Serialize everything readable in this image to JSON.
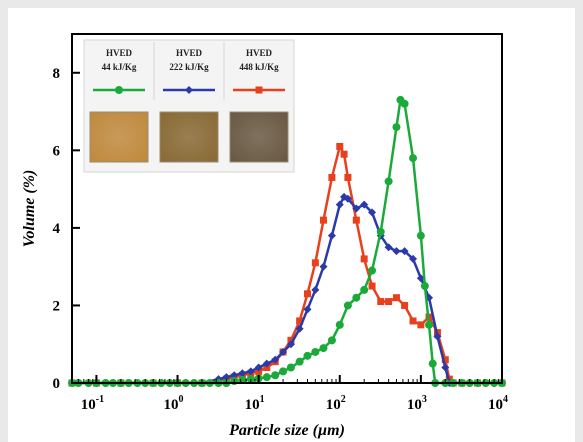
{
  "chart_data": {
    "type": "line",
    "xlabel": "Particle size (µm)",
    "ylabel": "Volume (%)",
    "x_scale": "log",
    "xlim": [
      0.05,
      10000
    ],
    "ylim": [
      0,
      9
    ],
    "x_ticks": [
      {
        "value": 0.1,
        "base": "10",
        "exp": "-1"
      },
      {
        "value": 1,
        "base": "10",
        "exp": "0"
      },
      {
        "value": 10,
        "base": "10",
        "exp": "1"
      },
      {
        "value": 100,
        "base": "10",
        "exp": "2"
      },
      {
        "value": 1000,
        "base": "10",
        "exp": "3"
      },
      {
        "value": 10000,
        "base": "10",
        "exp": "4"
      }
    ],
    "y_ticks": [
      0,
      2,
      4,
      6,
      8
    ],
    "grid": false,
    "legend_position": "top-left",
    "series": [
      {
        "name_line1": "HVED",
        "name_line2": "44 kJ/Kg",
        "color": "#1aaa3a",
        "marker": "circle",
        "points": [
          [
            0.05,
            0
          ],
          [
            0.06,
            0
          ],
          [
            0.08,
            0
          ],
          [
            0.1,
            0
          ],
          [
            0.13,
            0
          ],
          [
            0.16,
            0
          ],
          [
            0.2,
            0
          ],
          [
            0.25,
            0
          ],
          [
            0.32,
            0
          ],
          [
            0.4,
            0
          ],
          [
            0.5,
            0
          ],
          [
            0.63,
            0
          ],
          [
            0.8,
            0
          ],
          [
            1,
            0
          ],
          [
            1.26,
            0
          ],
          [
            1.6,
            0
          ],
          [
            2,
            0
          ],
          [
            2.5,
            0
          ],
          [
            3.2,
            0
          ],
          [
            4,
            0
          ],
          [
            5,
            0.05
          ],
          [
            6.3,
            0.08
          ],
          [
            8,
            0.1
          ],
          [
            10,
            0.12
          ],
          [
            12.6,
            0.15
          ],
          [
            16,
            0.2
          ],
          [
            20,
            0.3
          ],
          [
            25,
            0.4
          ],
          [
            32,
            0.55
          ],
          [
            40,
            0.7
          ],
          [
            50,
            0.8
          ],
          [
            63,
            0.9
          ],
          [
            80,
            1.1
          ],
          [
            100,
            1.5
          ],
          [
            126,
            2.0
          ],
          [
            160,
            2.2
          ],
          [
            200,
            2.4
          ],
          [
            250,
            2.9
          ],
          [
            320,
            3.9
          ],
          [
            400,
            5.2
          ],
          [
            500,
            6.6
          ],
          [
            560,
            7.3
          ],
          [
            630,
            7.2
          ],
          [
            800,
            5.8
          ],
          [
            1000,
            3.8
          ],
          [
            1120,
            2.5
          ],
          [
            1260,
            1.5
          ],
          [
            1400,
            0.5
          ],
          [
            1500,
            0
          ],
          [
            2000,
            0
          ],
          [
            2500,
            0
          ],
          [
            3200,
            0
          ],
          [
            4000,
            0
          ],
          [
            5000,
            0
          ],
          [
            6300,
            0
          ],
          [
            8000,
            0
          ],
          [
            10000,
            0
          ]
        ]
      },
      {
        "name_line1": "HVED",
        "name_line2": "222 kJ/Kg",
        "color": "#2a3aa8",
        "marker": "diamond",
        "points": [
          [
            0.05,
            0
          ],
          [
            0.1,
            0
          ],
          [
            0.2,
            0
          ],
          [
            0.5,
            0
          ],
          [
            1,
            0
          ],
          [
            2,
            0
          ],
          [
            3.2,
            0.1
          ],
          [
            4,
            0.15
          ],
          [
            5,
            0.2
          ],
          [
            6.3,
            0.25
          ],
          [
            8,
            0.3
          ],
          [
            10,
            0.4
          ],
          [
            12.6,
            0.5
          ],
          [
            16,
            0.6
          ],
          [
            20,
            0.8
          ],
          [
            25,
            1.0
          ],
          [
            32,
            1.4
          ],
          [
            40,
            1.9
          ],
          [
            50,
            2.4
          ],
          [
            63,
            3.0
          ],
          [
            80,
            3.8
          ],
          [
            100,
            4.6
          ],
          [
            113,
            4.8
          ],
          [
            126,
            4.75
          ],
          [
            160,
            4.5
          ],
          [
            200,
            4.6
          ],
          [
            250,
            4.4
          ],
          [
            320,
            3.8
          ],
          [
            400,
            3.5
          ],
          [
            500,
            3.4
          ],
          [
            630,
            3.4
          ],
          [
            800,
            3.2
          ],
          [
            1000,
            2.7
          ],
          [
            1260,
            2.2
          ],
          [
            1600,
            1.2
          ],
          [
            2000,
            0.4
          ],
          [
            2240,
            0
          ],
          [
            3200,
            0
          ],
          [
            5000,
            0
          ],
          [
            10000,
            0
          ]
        ]
      },
      {
        "name_line1": "HVED",
        "name_line2": "448 kJ/Kg",
        "color": "#e8401c",
        "marker": "square",
        "points": [
          [
            0.05,
            0
          ],
          [
            0.1,
            0
          ],
          [
            0.2,
            0
          ],
          [
            0.5,
            0
          ],
          [
            1,
            0
          ],
          [
            2,
            0
          ],
          [
            4,
            0.1
          ],
          [
            5,
            0.15
          ],
          [
            6.3,
            0.2
          ],
          [
            8,
            0.25
          ],
          [
            10,
            0.3
          ],
          [
            12.6,
            0.4
          ],
          [
            16,
            0.55
          ],
          [
            20,
            0.8
          ],
          [
            25,
            1.1
          ],
          [
            32,
            1.6
          ],
          [
            40,
            2.3
          ],
          [
            50,
            3.1
          ],
          [
            63,
            4.2
          ],
          [
            80,
            5.3
          ],
          [
            100,
            6.1
          ],
          [
            113,
            5.9
          ],
          [
            126,
            5.3
          ],
          [
            160,
            4.2
          ],
          [
            200,
            3.2
          ],
          [
            250,
            2.5
          ],
          [
            320,
            2.1
          ],
          [
            400,
            2.1
          ],
          [
            500,
            2.2
          ],
          [
            630,
            2.0
          ],
          [
            800,
            1.6
          ],
          [
            1000,
            1.5
          ],
          [
            1260,
            1.7
          ],
          [
            1600,
            1.3
          ],
          [
            2000,
            0.6
          ],
          [
            2240,
            0.1
          ],
          [
            2500,
            0
          ],
          [
            3200,
            0
          ],
          [
            5000,
            0
          ],
          [
            10000,
            0
          ]
        ]
      }
    ]
  },
  "legend": {
    "icon_images": [
      {
        "name": "sample-44-image",
        "color": "#c08a3e"
      },
      {
        "name": "sample-222-image",
        "color": "#8a6a36"
      },
      {
        "name": "sample-448-image",
        "color": "#6a5a44"
      }
    ]
  }
}
